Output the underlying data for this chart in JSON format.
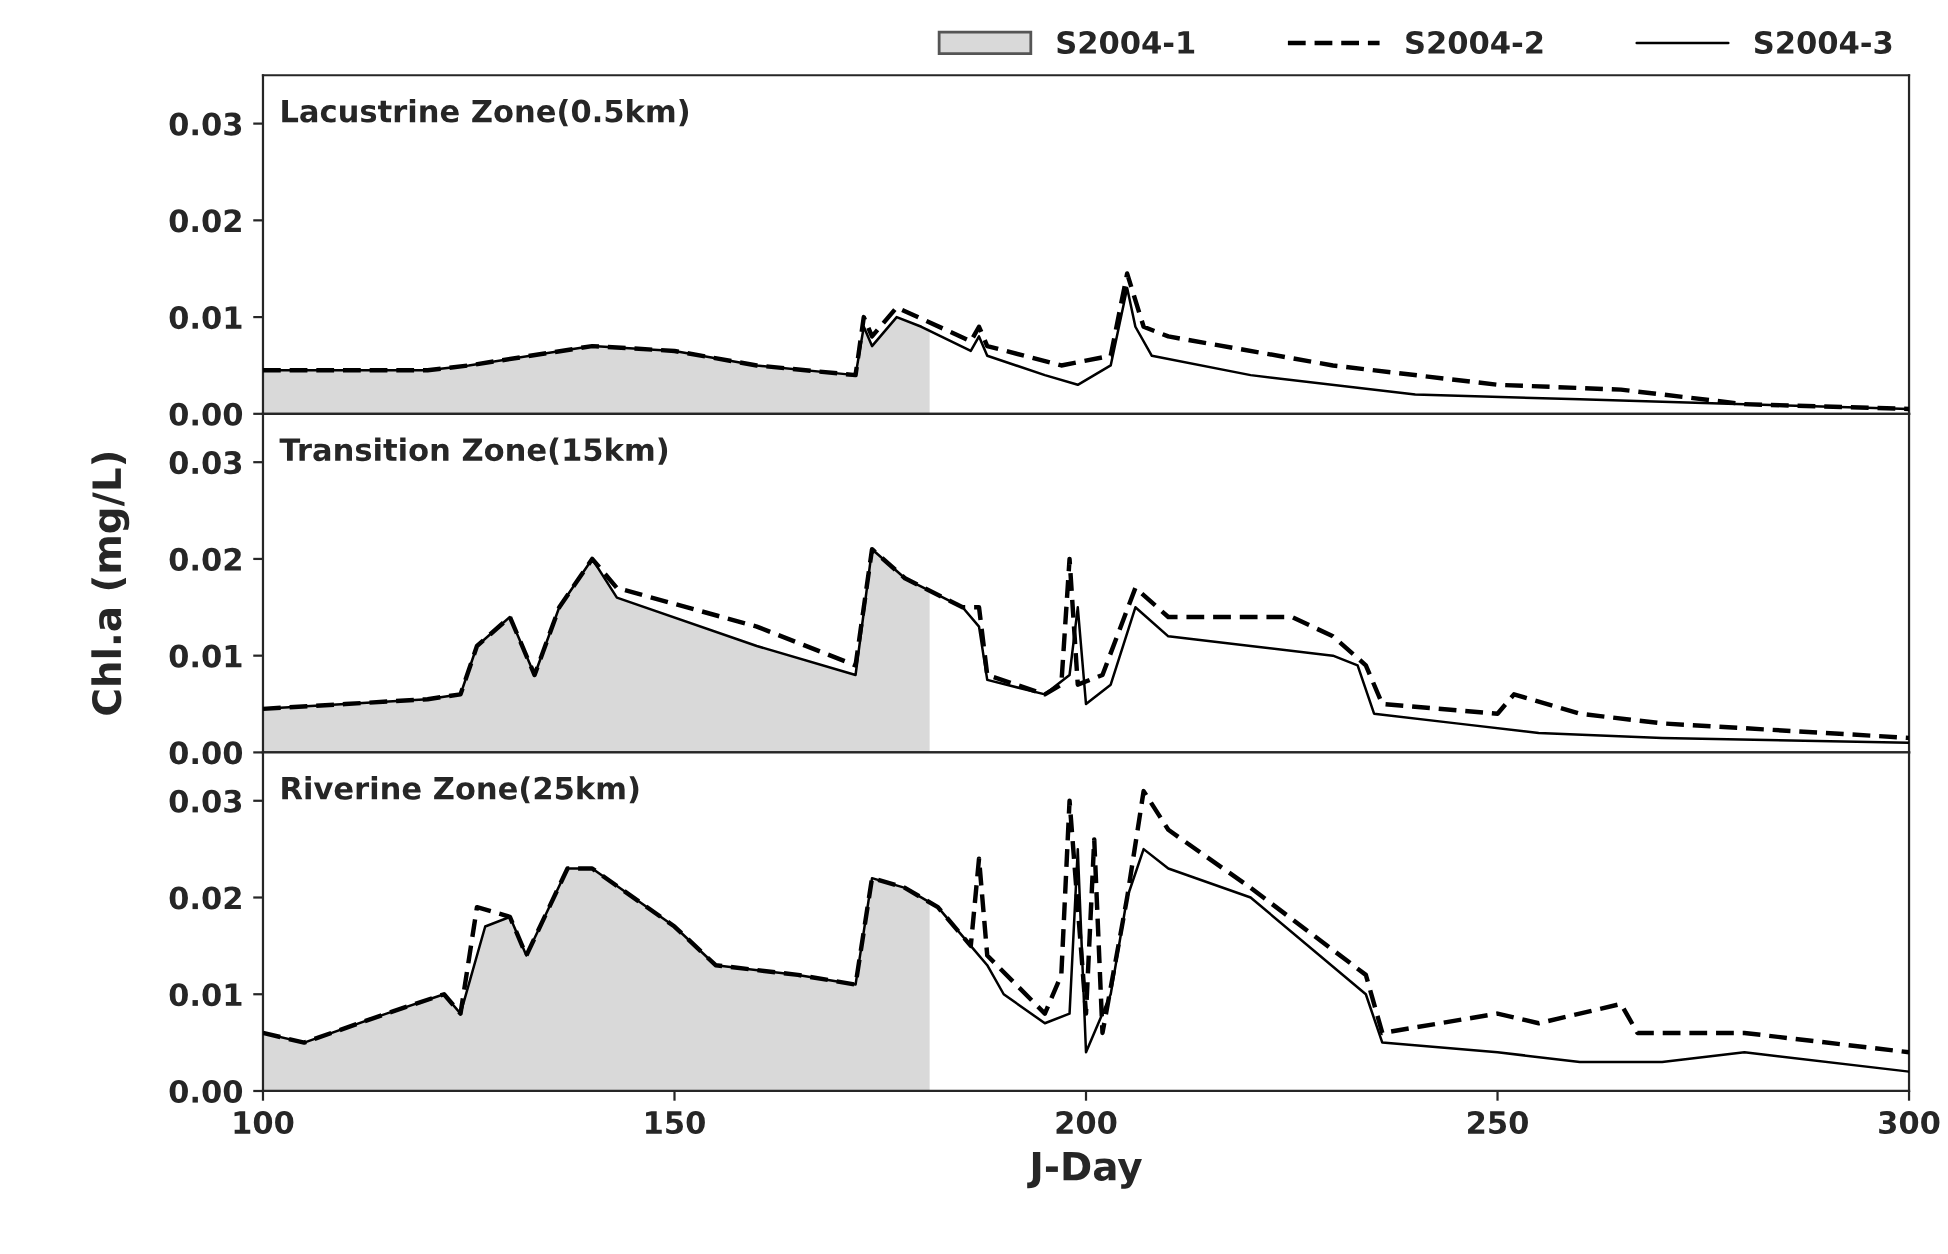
{
  "chart_data": [
    {
      "type": "line",
      "title": "Lacustrine Zone(0.5km)",
      "xlim": [
        100,
        300
      ],
      "ylim": [
        0,
        0.035
      ],
      "yticks": [
        {
          "value": 0,
          "label": "0.00"
        },
        {
          "value": 0.01,
          "label": "0.01"
        },
        {
          "value": 0.02,
          "label": "0.02"
        },
        {
          "value": 0.03,
          "label": "0.03"
        }
      ],
      "tick_labels": "y",
      "legend": "top right",
      "series": [
        {
          "name": "S2004-1",
          "type": "area",
          "color": "#d9d9d9",
          "x": [
            100,
            120,
            125,
            140,
            150,
            160,
            172,
            173,
            174,
            177,
            180,
            181
          ],
          "values": [
            0.0045,
            0.0045,
            0.005,
            0.007,
            0.0065,
            0.005,
            0.004,
            0.009,
            0.007,
            0.01,
            0.009,
            0.0088
          ]
        },
        {
          "name": "S2004-2",
          "type": "line",
          "line_style": "dashed",
          "color": "#000000",
          "x": [
            100,
            120,
            125,
            140,
            150,
            160,
            172,
            173,
            174,
            177,
            186,
            187,
            188,
            197,
            203,
            205,
            207,
            210,
            230,
            250,
            265,
            280,
            300
          ],
          "values": [
            0.0045,
            0.0045,
            0.005,
            0.007,
            0.0065,
            0.005,
            0.004,
            0.01,
            0.008,
            0.011,
            0.0075,
            0.009,
            0.007,
            0.005,
            0.006,
            0.0145,
            0.009,
            0.008,
            0.005,
            0.003,
            0.0025,
            0.001,
            0.0005
          ]
        },
        {
          "name": "S2004-3",
          "type": "line",
          "line_style": "solid",
          "color": "#000000",
          "x": [
            100,
            120,
            125,
            140,
            150,
            160,
            172,
            173,
            174,
            177,
            180,
            186,
            187,
            188,
            195,
            199,
            203,
            205,
            206,
            208,
            220,
            240,
            260,
            280,
            300
          ],
          "values": [
            0.0045,
            0.0045,
            0.005,
            0.007,
            0.0065,
            0.005,
            0.004,
            0.009,
            0.007,
            0.01,
            0.009,
            0.0065,
            0.008,
            0.006,
            0.004,
            0.003,
            0.005,
            0.013,
            0.009,
            0.006,
            0.004,
            0.002,
            0.0015,
            0.001,
            0.0005
          ]
        }
      ]
    },
    {
      "type": "line",
      "title": "Transition Zone(15km)",
      "ylabel": "Chl.a (mg/L)",
      "xlim": [
        100,
        300
      ],
      "ylim": [
        0,
        0.035
      ],
      "yticks": [
        {
          "value": 0,
          "label": "0.00"
        },
        {
          "value": 0.01,
          "label": "0.01"
        },
        {
          "value": 0.02,
          "label": "0.02"
        },
        {
          "value": 0.03,
          "label": "0.03"
        }
      ],
      "tick_labels": "y",
      "series": [
        {
          "type": "area",
          "color": "#d9d9d9",
          "x": [
            100,
            110,
            120,
            124,
            126,
            130,
            133,
            136,
            140,
            143,
            160,
            172,
            174,
            178,
            181
          ],
          "values": [
            0.0045,
            0.005,
            0.0055,
            0.006,
            0.011,
            0.014,
            0.008,
            0.015,
            0.02,
            0.016,
            0.011,
            0.008,
            0.021,
            0.018,
            0.0167
          ]
        },
        {
          "type": "line",
          "line_style": "dashed",
          "color": "#000000",
          "x": [
            100,
            110,
            120,
            124,
            126,
            130,
            133,
            136,
            140,
            143,
            160,
            172,
            174,
            178,
            185,
            187,
            188,
            195,
            197,
            198,
            199,
            202,
            206,
            210,
            225,
            230,
            234,
            236,
            250,
            252,
            260,
            270,
            300
          ],
          "values": [
            0.0045,
            0.005,
            0.0055,
            0.006,
            0.011,
            0.014,
            0.008,
            0.015,
            0.02,
            0.017,
            0.013,
            0.009,
            0.021,
            0.018,
            0.015,
            0.015,
            0.008,
            0.006,
            0.007,
            0.02,
            0.007,
            0.008,
            0.017,
            0.014,
            0.014,
            0.012,
            0.009,
            0.005,
            0.004,
            0.006,
            0.004,
            0.003,
            0.0015
          ]
        },
        {
          "type": "line",
          "line_style": "solid",
          "color": "#000000",
          "x": [
            100,
            110,
            120,
            124,
            126,
            130,
            133,
            136,
            140,
            143,
            160,
            172,
            174,
            178,
            185,
            187,
            188,
            195,
            198,
            199,
            200,
            203,
            206,
            210,
            220,
            230,
            233,
            235,
            245,
            255,
            270,
            300
          ],
          "values": [
            0.0045,
            0.005,
            0.0055,
            0.006,
            0.011,
            0.014,
            0.008,
            0.015,
            0.02,
            0.016,
            0.011,
            0.008,
            0.021,
            0.018,
            0.015,
            0.013,
            0.0075,
            0.006,
            0.008,
            0.015,
            0.005,
            0.007,
            0.015,
            0.012,
            0.011,
            0.01,
            0.009,
            0.004,
            0.003,
            0.002,
            0.0015,
            0.001
          ]
        }
      ]
    },
    {
      "type": "line",
      "title": "Riverine Zone(25km)",
      "xlabel": "J-Day",
      "xlim": [
        100,
        300
      ],
      "xticks": [
        100,
        150,
        200,
        250,
        300
      ],
      "ylim": [
        0,
        0.035
      ],
      "yticks": [
        {
          "value": 0,
          "label": "0.00"
        },
        {
          "value": 0.01,
          "label": "0.01"
        },
        {
          "value": 0.02,
          "label": "0.02"
        },
        {
          "value": 0.03,
          "label": "0.03"
        }
      ],
      "series": [
        {
          "type": "area",
          "color": "#d9d9d9",
          "x": [
            100,
            105,
            115,
            122,
            124,
            127,
            130,
            132,
            137,
            140,
            150,
            155,
            165,
            172,
            174,
            178,
            181
          ],
          "values": [
            0.006,
            0.005,
            0.008,
            0.01,
            0.008,
            0.017,
            0.018,
            0.014,
            0.023,
            0.023,
            0.017,
            0.013,
            0.012,
            0.011,
            0.022,
            0.021,
            0.0195
          ]
        },
        {
          "type": "line",
          "line_style": "dashed",
          "color": "#000000",
          "x": [
            100,
            105,
            115,
            122,
            124,
            126,
            130,
            132,
            137,
            140,
            150,
            155,
            165,
            172,
            174,
            178,
            182,
            186,
            187,
            188,
            195,
            197,
            198,
            200,
            201,
            202,
            205,
            207,
            210,
            220,
            234,
            236,
            250,
            255,
            265,
            267,
            280,
            300
          ],
          "values": [
            0.006,
            0.005,
            0.008,
            0.01,
            0.008,
            0.019,
            0.018,
            0.014,
            0.023,
            0.023,
            0.017,
            0.013,
            0.012,
            0.011,
            0.022,
            0.021,
            0.019,
            0.015,
            0.024,
            0.014,
            0.008,
            0.012,
            0.03,
            0.008,
            0.026,
            0.006,
            0.02,
            0.031,
            0.027,
            0.021,
            0.012,
            0.006,
            0.008,
            0.007,
            0.009,
            0.006,
            0.006,
            0.004
          ]
        },
        {
          "type": "line",
          "line_style": "solid",
          "color": "#000000",
          "x": [
            100,
            105,
            115,
            122,
            124,
            127,
            130,
            132,
            137,
            140,
            150,
            155,
            165,
            172,
            174,
            178,
            182,
            186,
            188,
            190,
            195,
            198,
            199,
            200,
            203,
            205,
            207,
            210,
            220,
            234,
            236,
            250,
            260,
            270,
            280,
            300
          ],
          "values": [
            0.006,
            0.005,
            0.008,
            0.01,
            0.008,
            0.017,
            0.018,
            0.014,
            0.023,
            0.023,
            0.017,
            0.013,
            0.012,
            0.011,
            0.022,
            0.021,
            0.019,
            0.015,
            0.013,
            0.01,
            0.007,
            0.008,
            0.025,
            0.004,
            0.01,
            0.02,
            0.025,
            0.023,
            0.02,
            0.01,
            0.005,
            0.004,
            0.003,
            0.003,
            0.004,
            0.002
          ]
        }
      ]
    }
  ]
}
